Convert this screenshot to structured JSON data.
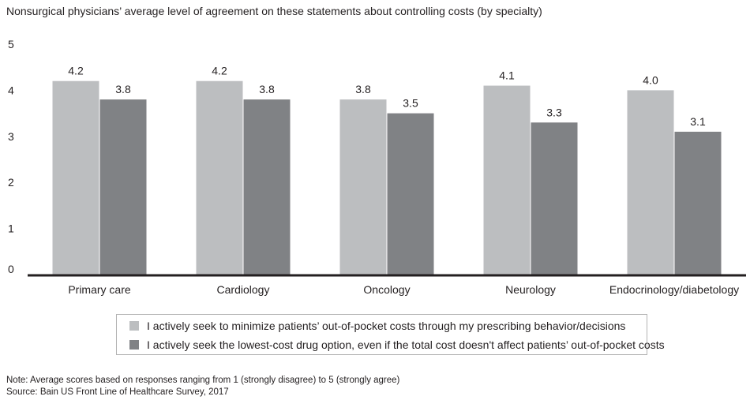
{
  "chart_data": {
    "type": "bar",
    "title": "Nonsurgical physicians’ average level of agreement on these statements about controlling costs (by specialty)",
    "categories": [
      "Primary care",
      "Cardiology",
      "Oncology",
      "Neurology",
      "Endocrinology/diabetology"
    ],
    "series": [
      {
        "name": "I actively seek to minimize patients’ out-of-pocket costs through my prescribing behavior/decisions",
        "values": [
          4.2,
          4.2,
          3.8,
          4.1,
          4.0
        ],
        "labels": [
          "4.2",
          "4.2",
          "3.8",
          "4.1",
          "4.0"
        ],
        "color": "#bcbec0"
      },
      {
        "name": "I actively seek the lowest-cost drug option, even if the total cost doesn't affect patients’ out-of-pocket costs",
        "values": [
          3.8,
          3.8,
          3.5,
          3.3,
          3.1
        ],
        "labels": [
          "3.8",
          "3.8",
          "3.5",
          "3.3",
          "3.1"
        ],
        "color": "#808285"
      }
    ],
    "ylim": [
      0,
      5
    ],
    "yticks": [
      "0",
      "1",
      "2",
      "3",
      "4",
      "5"
    ],
    "xlabel": "",
    "ylabel": "",
    "grid": false,
    "legend_position": "bottom"
  },
  "footer": {
    "note": "Note: Average scores based on responses ranging from 1 (strongly disagree) to 5 (strongly agree)",
    "source": "Source: Bain US Front Line of Healthcare Survey, 2017"
  },
  "colors": {
    "axis": "#231f20",
    "text": "#231f20"
  }
}
